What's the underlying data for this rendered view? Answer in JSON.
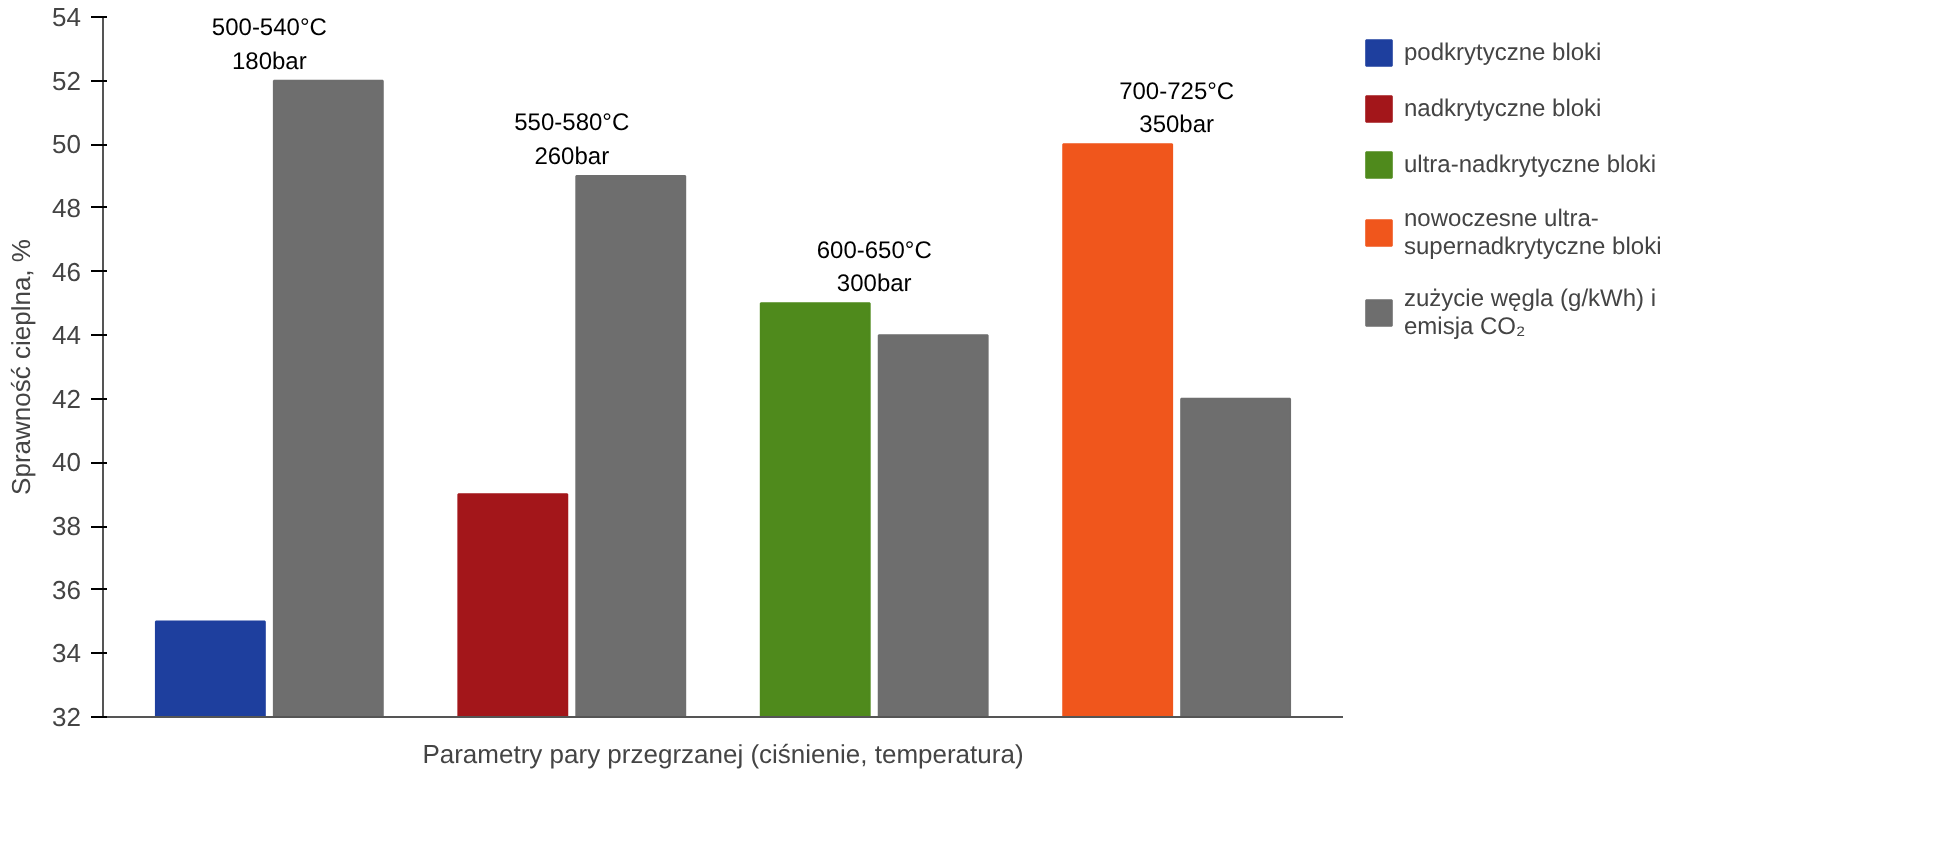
{
  "chart_data": {
    "type": "bar",
    "xlabel": "Parametry pary przegrzanej (ciśnienie, temperatura)",
    "ylabel": "Sprawność cieplna, %",
    "categories": [
      null,
      null,
      null,
      null
    ],
    "series": [
      {
        "name": "podkrytyczne bloki",
        "color": "#1e3f9e",
        "values": [
          35,
          null,
          null,
          null
        ]
      },
      {
        "name": "nadkrytyczne bloki",
        "color": "#a3161a",
        "values": [
          null,
          39,
          null,
          null
        ]
      },
      {
        "name": "ultra-nadkrytyczne bloki",
        "color": "#4f8a1c",
        "values": [
          null,
          null,
          45,
          null
        ]
      },
      {
        "name": "nowoczesne ultra-supernadkrytyczne bloki",
        "color": "#f0561c",
        "values": [
          null,
          null,
          null,
          50
        ]
      },
      {
        "name": "zużycie węgla (g/kWh) i emisja CO₂",
        "color": "#6e6e6e",
        "values": [
          52,
          49,
          44,
          42
        ]
      }
    ],
    "annotations": [
      "500-540°C\n180bar",
      "550-580°C\n260bar",
      "600-650°C\n300bar",
      "700-725°C\n350bar"
    ],
    "ylim": [
      32,
      54
    ],
    "yticks": [
      32,
      34,
      36,
      38,
      40,
      42,
      44,
      46,
      48,
      50,
      52,
      54
    ],
    "grid": false,
    "legend": "right"
  }
}
